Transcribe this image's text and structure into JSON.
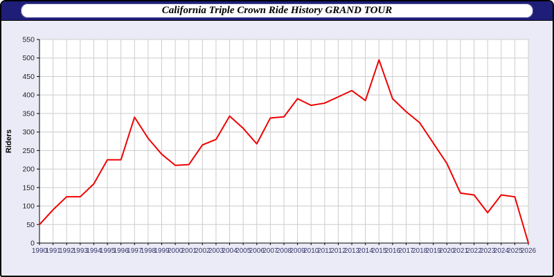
{
  "header": {
    "title": "California Triple Crown Ride History GRAND TOUR"
  },
  "chart_data": {
    "type": "line",
    "title": "California Triple Crown Ride History GRAND TOUR",
    "xlabel": "",
    "ylabel": "Riders",
    "x": [
      1990,
      1991,
      1992,
      1993,
      1994,
      1995,
      1996,
      1997,
      1998,
      1999,
      2000,
      2001,
      2002,
      2003,
      2004,
      2005,
      2006,
      2007,
      2008,
      2009,
      2010,
      2011,
      2012,
      2013,
      2014,
      2015,
      2016,
      2017,
      2018,
      2019,
      2020,
      2021,
      2022,
      2023,
      2024,
      2025,
      2026
    ],
    "series": [
      {
        "name": "Riders",
        "color": "#ee0000",
        "values": [
          50,
          90,
          125,
          125,
          160,
          225,
          225,
          340,
          283,
          240,
          210,
          212,
          265,
          280,
          343,
          310,
          268,
          338,
          341,
          390,
          372,
          378,
          395,
          412,
          385,
          495,
          390,
          355,
          325,
          270,
          215,
          135,
          130,
          82,
          130,
          125,
          0
        ]
      }
    ],
    "ylim": [
      0,
      550
    ],
    "ytick_step": 50,
    "grid": true,
    "legend_position": "none"
  },
  "theme": {
    "page_bg": "#ebebf7",
    "header_bg": "#1e1e78",
    "title_box_bg": "#ffffff",
    "plot_bg": "#ffffff",
    "grid_color": "#cccccc",
    "axis_color": "#000000",
    "x_tick_color": "#333366",
    "y_tick_color": "#222222",
    "line_color": "#ee0000"
  }
}
